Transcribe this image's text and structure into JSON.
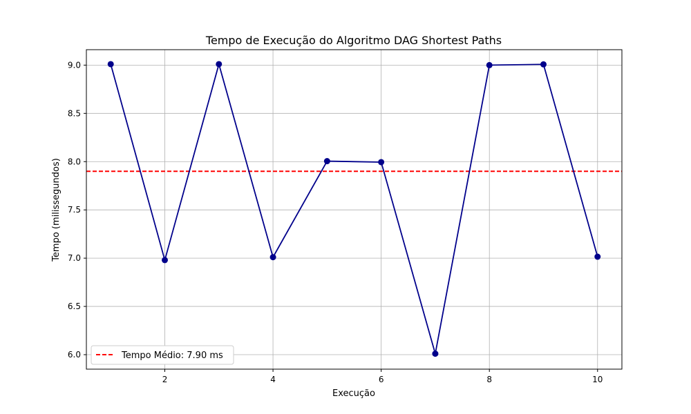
{
  "chart_data": {
    "type": "line",
    "title": "Tempo de Execução do Algoritmo DAG Shortest Paths",
    "xlabel": "Execução",
    "ylabel": "Tempo (milissegundos)",
    "x": [
      1,
      2,
      3,
      4,
      5,
      6,
      7,
      8,
      9,
      10
    ],
    "series": [
      {
        "values": [
          9.01,
          6.98,
          9.01,
          7.01,
          8.005,
          7.995,
          6.01,
          9.0,
          9.008,
          7.015
        ],
        "color": "#00008b"
      }
    ],
    "xlim": [
      0.55,
      10.45
    ],
    "ylim": [
      5.85,
      9.16
    ],
    "xticks": [
      2,
      4,
      6,
      8,
      10
    ],
    "yticks": [
      6.0,
      6.5,
      7.0,
      7.5,
      8.0,
      8.5,
      9.0
    ],
    "ytick_labels": [
      "6.0",
      "6.5",
      "7.0",
      "7.5",
      "8.0",
      "8.5",
      "9.0"
    ],
    "xtick_labels": [
      "2",
      "4",
      "6",
      "8",
      "10"
    ],
    "grid": true,
    "mean_line": {
      "value": 7.9,
      "label": "Tempo Médio: 7.90 ms",
      "color": "#ff0000"
    },
    "legend_position": "lower-left"
  }
}
